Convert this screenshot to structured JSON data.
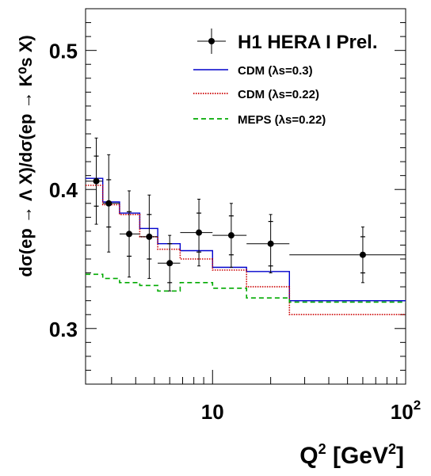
{
  "chart_data": {
    "type": "scatter",
    "title": "",
    "xlabel": "Q² [GeV²]",
    "ylabel": "dσ(ep → Λ X)/dσ(ep → K⁰s X)",
    "xscale": "log",
    "xlim": [
      2.2,
      100
    ],
    "ylim": [
      0.26,
      0.53
    ],
    "x_tick_labels": [
      {
        "value": 10,
        "label": "10"
      },
      {
        "value": 100,
        "label": "10²"
      }
    ],
    "y_tick_labels": [
      {
        "value": 0.3,
        "label": "0.3"
      },
      {
        "value": 0.4,
        "label": "0.4"
      },
      {
        "value": 0.5,
        "label": "0.5"
      }
    ],
    "legend_position": "top-right",
    "series": [
      {
        "name": "H1 HERA I Prel.",
        "kind": "points",
        "color": "#000000",
        "points": [
          {
            "x": 2.5,
            "xlo": 2.2,
            "xhi": 2.7,
            "y": 0.406,
            "stat": 0.018,
            "tot": 0.031
          },
          {
            "x": 2.9,
            "xlo": 2.7,
            "xhi": 3.3,
            "y": 0.39,
            "stat": 0.017,
            "tot": 0.035
          },
          {
            "x": 3.7,
            "xlo": 3.3,
            "xhi": 4.2,
            "y": 0.368,
            "stat": 0.016,
            "tot": 0.031
          },
          {
            "x": 4.7,
            "xlo": 4.2,
            "xhi": 5.2,
            "y": 0.366,
            "stat": 0.016,
            "tot": 0.03
          },
          {
            "x": 6.0,
            "xlo": 5.2,
            "xhi": 6.8,
            "y": 0.347,
            "stat": 0.014,
            "tot": 0.02
          },
          {
            "x": 8.5,
            "xlo": 6.8,
            "xhi": 10.0,
            "y": 0.369,
            "stat": 0.014,
            "tot": 0.024
          },
          {
            "x": 12.5,
            "xlo": 10.0,
            "xhi": 15.0,
            "y": 0.367,
            "stat": 0.014,
            "tot": 0.023
          },
          {
            "x": 20.0,
            "xlo": 15.0,
            "xhi": 25.0,
            "y": 0.361,
            "stat": 0.016,
            "tot": 0.021
          },
          {
            "x": 60.0,
            "xlo": 25.0,
            "xhi": 100.0,
            "y": 0.353,
            "stat": 0.013,
            "tot": 0.02
          }
        ]
      },
      {
        "name": "CDM (λs=0.3)",
        "kind": "step",
        "color": "#0000cc",
        "style": "solid",
        "edges": [
          2.2,
          2.7,
          3.3,
          4.2,
          5.2,
          6.8,
          10.0,
          15.0,
          25.0,
          100.0
        ],
        "values": [
          0.408,
          0.391,
          0.383,
          0.372,
          0.361,
          0.356,
          0.344,
          0.341,
          0.32
        ]
      },
      {
        "name": "CDM (λs=0.22)",
        "kind": "step",
        "color": "#cc0000",
        "style": "dotted",
        "edges": [
          2.2,
          2.7,
          3.3,
          4.2,
          5.2,
          6.8,
          10.0,
          15.0,
          25.0,
          100.0
        ],
        "values": [
          0.403,
          0.389,
          0.382,
          0.366,
          0.357,
          0.35,
          0.342,
          0.33,
          0.31
        ]
      },
      {
        "name": "MEPS (λs=0.22)",
        "kind": "step",
        "color": "#00aa00",
        "style": "dashed",
        "edges": [
          2.2,
          2.7,
          3.3,
          4.2,
          5.2,
          6.8,
          10.0,
          15.0,
          25.0,
          100.0
        ],
        "values": [
          0.339,
          0.336,
          0.333,
          0.331,
          0.327,
          0.333,
          0.329,
          0.322,
          0.319
        ]
      }
    ]
  },
  "legend": {
    "entries": [
      {
        "label": "H1 HERA I Prel."
      },
      {
        "label": "CDM (λs=0.3)"
      },
      {
        "label": "CDM (λs=0.22)"
      },
      {
        "label": "MEPS (λs=0.22)"
      }
    ]
  },
  "axes": {
    "xlabel_main": "Q",
    "xlabel_sup": "2",
    "xlabel_rest_a": " [GeV",
    "xlabel_sup2": "2",
    "xlabel_rest_b": "]"
  }
}
